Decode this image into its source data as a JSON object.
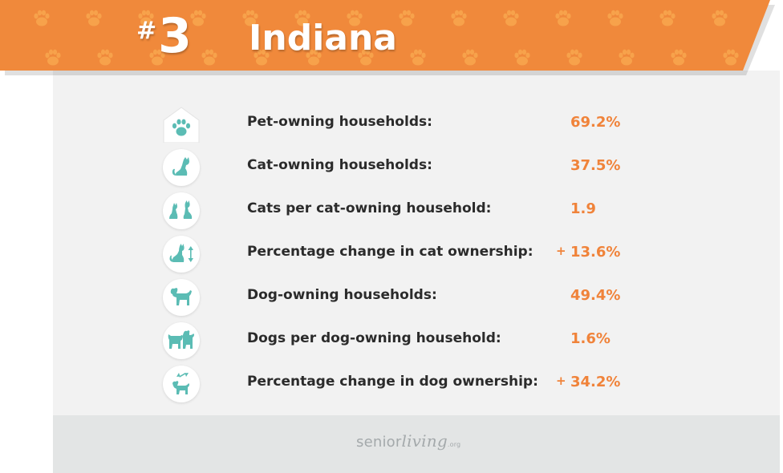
{
  "header": {
    "rank_symbol": "#",
    "rank_number": "3",
    "state": "Indiana",
    "banner_color": "#f0893b",
    "paw_color": "#f7a24b"
  },
  "rows": [
    {
      "icon": "house-paw-icon",
      "label": "Pet-owning households:",
      "sign": "",
      "value": "69.2%"
    },
    {
      "icon": "cat-icon",
      "label": "Cat-owning households:",
      "sign": "",
      "value": "37.5%"
    },
    {
      "icon": "two-cats-icon",
      "label": "Cats per cat-owning household:",
      "sign": "",
      "value": "1.9"
    },
    {
      "icon": "cat-change-icon",
      "label": "Percentage change in cat ownership:",
      "sign": "+",
      "value": "13.6%"
    },
    {
      "icon": "dog-icon",
      "label": "Dog-owning households:",
      "sign": "",
      "value": "49.4%"
    },
    {
      "icon": "two-dogs-icon",
      "label": "Dogs per dog-owning household:",
      "sign": "",
      "value": "1.6%"
    },
    {
      "icon": "dog-change-icon",
      "label": "Percentage change in dog ownership:",
      "sign": "+",
      "value": "34.2%"
    }
  ],
  "footer": {
    "logo_prefix": "senior",
    "logo_script": "living",
    "logo_suffix": ".org"
  },
  "colors": {
    "accent": "#f0833a",
    "icon": "#5bbcb4",
    "card": "#f2f2f2",
    "footer": "#e3e5e5"
  }
}
